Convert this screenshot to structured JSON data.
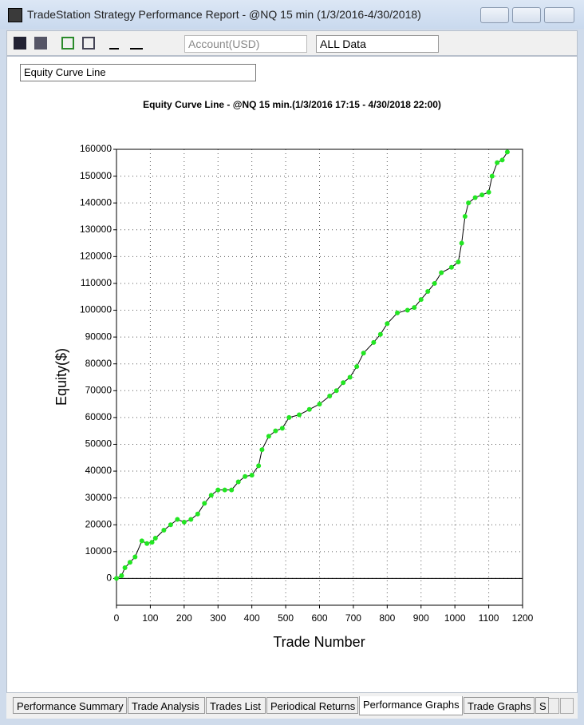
{
  "window": {
    "title": "TradeStation Strategy Performance Report - @NQ 15 min (1/3/2016-4/30/2018)"
  },
  "toolbar": {
    "account": "Account(USD)",
    "range": "ALL Data"
  },
  "view_select": "Equity Curve Line",
  "chart_data": {
    "type": "line",
    "title": "Equity Curve Line - @NQ 15 min.(1/3/2016 17:15 - 4/30/2018 22:00)",
    "x_label": "Trade Number",
    "y_label": "Equity($)",
    "x": [
      0,
      15,
      25,
      40,
      55,
      75,
      90,
      105,
      115,
      140,
      160,
      180,
      200,
      220,
      240,
      260,
      280,
      300,
      320,
      340,
      360,
      380,
      400,
      420,
      430,
      450,
      470,
      490,
      510,
      540,
      570,
      600,
      630,
      650,
      670,
      690,
      710,
      730,
      760,
      780,
      800,
      830,
      860,
      880,
      900,
      920,
      940,
      960,
      990,
      1010,
      1020,
      1030,
      1040,
      1060,
      1080,
      1100,
      1110,
      1125,
      1140,
      1155
    ],
    "values": [
      0,
      1000,
      4000,
      6000,
      8000,
      14000,
      13000,
      13500,
      15000,
      18000,
      20000,
      22000,
      21000,
      22000,
      24000,
      28000,
      31000,
      33000,
      33000,
      33000,
      36000,
      38000,
      38500,
      42000,
      48000,
      53000,
      55000,
      56000,
      60000,
      61000,
      63000,
      65000,
      68000,
      70000,
      73000,
      75000,
      79000,
      84000,
      88000,
      91000,
      95000,
      99000,
      100000,
      101000,
      104000,
      107000,
      110000,
      114000,
      116000,
      118000,
      125000,
      135000,
      140000,
      142000,
      143000,
      144000,
      150000,
      155000,
      156000,
      159000
    ],
    "color": "#22e622",
    "line_color": "#000000",
    "xlim": [
      0,
      1200
    ],
    "xticks": [
      0,
      100,
      200,
      300,
      400,
      500,
      600,
      700,
      800,
      900,
      1000,
      1100,
      1200
    ],
    "ylim": [
      -10000,
      160000
    ],
    "yticks": [
      0,
      10000,
      20000,
      30000,
      40000,
      50000,
      60000,
      70000,
      80000,
      90000,
      100000,
      110000,
      120000,
      130000,
      140000,
      150000,
      160000
    ],
    "grid": true
  },
  "tabs": [
    "Performance Summary",
    "Trade Analysis",
    "Trades List",
    "Periodical Returns",
    "Performance Graphs",
    "Trade Graphs",
    "S"
  ],
  "active_tab": 4
}
